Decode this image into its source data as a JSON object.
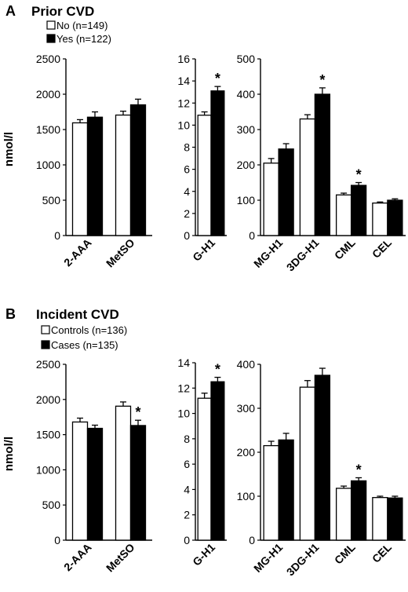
{
  "panels": [
    {
      "letter": "A",
      "title": "Prior CVD",
      "legend": [
        {
          "label": "No (n=149)",
          "fill": "white"
        },
        {
          "label": "Yes (n=122)",
          "fill": "black"
        }
      ],
      "ylabel": "nmol/l"
    },
    {
      "letter": "B",
      "title": "Incident CVD",
      "legend": [
        {
          "label": "Controls (n=136)",
          "fill": "white"
        },
        {
          "label": "Cases (n=135)",
          "fill": "black"
        }
      ],
      "ylabel": "nmol/l"
    }
  ],
  "chart_data": [
    {
      "type": "bar",
      "panel": "A",
      "ylim": [
        0,
        2500
      ],
      "yticks": [
        0,
        500,
        1000,
        1500,
        2000,
        2500
      ],
      "categories": [
        "2-AAA",
        "MetSO"
      ],
      "series": [
        {
          "name": "No (n=149)",
          "values": [
            1595,
            1705
          ],
          "errors": [
            45,
            55
          ]
        },
        {
          "name": "Yes (n=122)",
          "values": [
            1675,
            1850
          ],
          "errors": [
            75,
            80
          ]
        }
      ],
      "significant": [
        false,
        false
      ]
    },
    {
      "type": "bar",
      "panel": "A",
      "ylim": [
        0,
        16
      ],
      "yticks": [
        0,
        2,
        4,
        6,
        8,
        10,
        12,
        14,
        16
      ],
      "categories": [
        "G-H1"
      ],
      "series": [
        {
          "name": "No (n=149)",
          "values": [
            10.9
          ],
          "errors": [
            0.3
          ]
        },
        {
          "name": "Yes (n=122)",
          "values": [
            13.1
          ],
          "errors": [
            0.4
          ]
        }
      ],
      "significant": [
        true
      ]
    },
    {
      "type": "bar",
      "panel": "A",
      "ylim": [
        0,
        500
      ],
      "yticks": [
        0,
        100,
        200,
        300,
        400,
        500
      ],
      "categories": [
        "MG-H1",
        "3DG-H1",
        "CML",
        "CEL"
      ],
      "series": [
        {
          "name": "No (n=149)",
          "values": [
            205,
            330,
            115,
            92
          ],
          "errors": [
            13,
            12,
            5,
            3
          ]
        },
        {
          "name": "Yes (n=122)",
          "values": [
            245,
            400,
            142,
            100
          ],
          "errors": [
            15,
            18,
            8,
            4
          ]
        }
      ],
      "significant": [
        false,
        true,
        true,
        false
      ]
    },
    {
      "type": "bar",
      "panel": "B",
      "ylim": [
        0,
        2500
      ],
      "yticks": [
        0,
        500,
        1000,
        1500,
        2000,
        2500
      ],
      "categories": [
        "2-AAA",
        "MetSO"
      ],
      "series": [
        {
          "name": "Controls (n=136)",
          "values": [
            1680,
            1905
          ],
          "errors": [
            55,
            60
          ]
        },
        {
          "name": "Cases (n=135)",
          "values": [
            1590,
            1630
          ],
          "errors": [
            45,
            75
          ]
        }
      ],
      "significant": [
        false,
        true
      ]
    },
    {
      "type": "bar",
      "panel": "B",
      "ylim": [
        0,
        14
      ],
      "yticks": [
        0,
        2,
        4,
        6,
        8,
        10,
        12,
        14
      ],
      "categories": [
        "G-H1"
      ],
      "series": [
        {
          "name": "Controls (n=136)",
          "values": [
            11.2
          ],
          "errors": [
            0.4
          ]
        },
        {
          "name": "Cases (n=135)",
          "values": [
            12.5
          ],
          "errors": [
            0.35
          ]
        }
      ],
      "significant": [
        true
      ]
    },
    {
      "type": "bar",
      "panel": "B",
      "ylim": [
        0,
        400
      ],
      "yticks": [
        0,
        100,
        200,
        300,
        400
      ],
      "categories": [
        "MG-H1",
        "3DG-H1",
        "CML",
        "CEL"
      ],
      "series": [
        {
          "name": "Controls (n=136)",
          "values": [
            215,
            348,
            118,
            97
          ],
          "errors": [
            10,
            15,
            5,
            3
          ]
        },
        {
          "name": "Cases (n=135)",
          "values": [
            228,
            375,
            135,
            96
          ],
          "errors": [
            15,
            16,
            7,
            4
          ]
        }
      ],
      "significant": [
        false,
        false,
        true,
        false
      ]
    }
  ]
}
